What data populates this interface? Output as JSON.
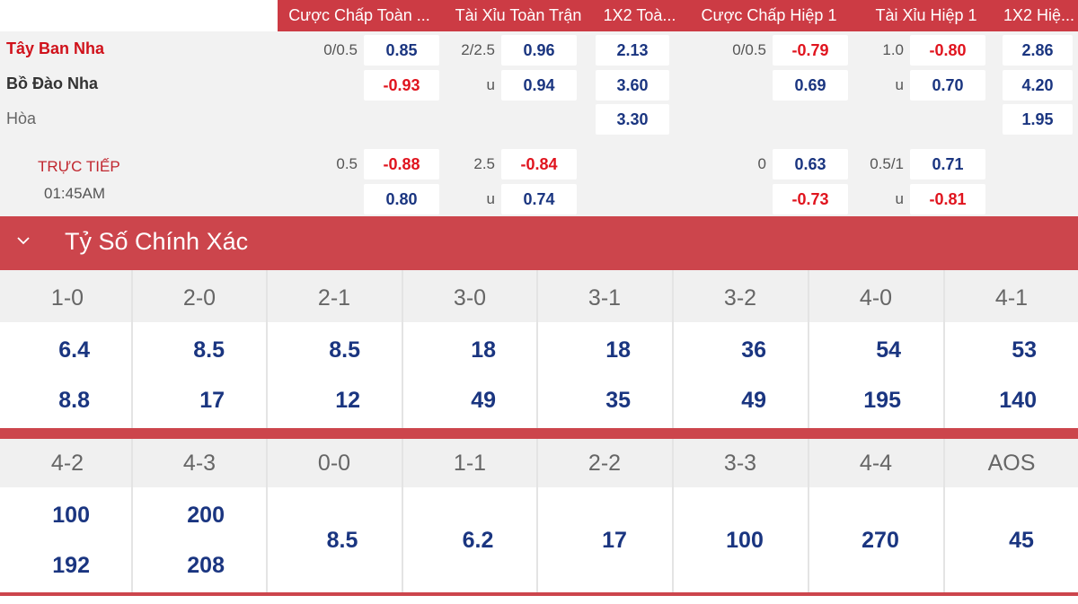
{
  "odds_table": {
    "headers": [
      "Cược Chấp Toàn ...",
      "Tài Xỉu Toàn Trận",
      "1X2 Toà...",
      "Cược Chấp Hiệp 1",
      "Tài Xỉu Hiệp 1",
      "1X2 Hiệ..."
    ],
    "teams": {
      "home": "Tây Ban Nha",
      "away": "Bồ Đào Nha",
      "draw": "Hòa"
    },
    "live": {
      "label": "TRỰC TIẾP",
      "time": "01:45AM"
    },
    "main": {
      "hdp_line": "0/0.5",
      "hdp_home": "0.85",
      "hdp_away": "-0.93",
      "ou_line": "2/2.5",
      "ou_over": "0.96",
      "ou_under_label": "u",
      "ou_under": "0.94",
      "x12_home": "2.13",
      "x12_away": "3.60",
      "x12_draw": "3.30",
      "h1_hdp_line": "0/0.5",
      "h1_hdp_home": "-0.79",
      "h1_hdp_away": "0.69",
      "h1_ou_line": "1.0",
      "h1_ou_over": "-0.80",
      "h1_ou_under_label": "u",
      "h1_ou_under": "0.70",
      "h1_x12_home": "2.86",
      "h1_x12_away": "4.20",
      "h1_x12_draw": "1.95"
    },
    "alt": {
      "hdp_line": "0.5",
      "hdp_home": "-0.88",
      "hdp_away": "0.80",
      "ou_line": "2.5",
      "ou_over": "-0.84",
      "ou_under_label": "u",
      "ou_under": "0.74",
      "h1_hdp_line": "0",
      "h1_hdp_home": "0.63",
      "h1_hdp_away": "-0.73",
      "h1_ou_line": "0.5/1",
      "h1_ou_over": "0.71",
      "h1_ou_under_label": "u",
      "h1_ou_under": "-0.81"
    }
  },
  "correct_score": {
    "title": "Tỷ Số Chính Xác",
    "row1": [
      {
        "score": "1-0",
        "home": "6.4",
        "away": "8.8"
      },
      {
        "score": "2-0",
        "home": "8.5",
        "away": "17"
      },
      {
        "score": "2-1",
        "home": "8.5",
        "away": "12"
      },
      {
        "score": "3-0",
        "home": "18",
        "away": "49"
      },
      {
        "score": "3-1",
        "home": "18",
        "away": "35"
      },
      {
        "score": "3-2",
        "home": "36",
        "away": "49"
      },
      {
        "score": "4-0",
        "home": "54",
        "away": "195"
      },
      {
        "score": "4-1",
        "home": "53",
        "away": "140"
      }
    ],
    "row2": [
      {
        "score": "4-2",
        "home": "100",
        "away": "192"
      },
      {
        "score": "4-3",
        "home": "200",
        "away": "208"
      },
      {
        "score": "0-0",
        "value": "8.5"
      },
      {
        "score": "1-1",
        "value": "6.2"
      },
      {
        "score": "2-2",
        "value": "17"
      },
      {
        "score": "3-3",
        "value": "100"
      },
      {
        "score": "4-4",
        "value": "270"
      },
      {
        "score": "AOS",
        "value": "45"
      }
    ]
  },
  "colors": {
    "accent_red": "#cc454c",
    "odds_blue": "#1a3580",
    "negative_red": "#e0141e"
  }
}
